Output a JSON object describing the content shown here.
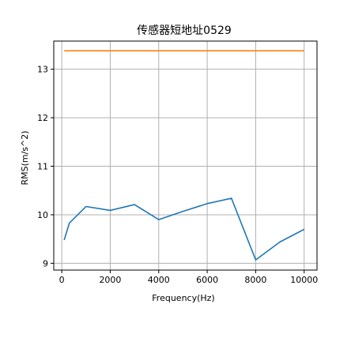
{
  "chart_data": {
    "type": "line",
    "title": "传感器短地址0529",
    "xlabel": "Frequency(Hz)",
    "ylabel": "RMS(m/s^2)",
    "xlim": [
      -330,
      10530
    ],
    "ylim": [
      8.86,
      13.58
    ],
    "xticks": [
      0,
      2000,
      4000,
      6000,
      8000,
      10000
    ],
    "yticks": [
      9,
      10,
      11,
      12,
      13
    ],
    "grid": true,
    "series": [
      {
        "color": "#1f77b4",
        "x": [
          100,
          315,
          1000,
          2000,
          3000,
          4000,
          5000,
          6000,
          7000,
          8000,
          9000,
          10000
        ],
        "y": [
          9.48,
          9.83,
          10.17,
          10.09,
          10.21,
          9.9,
          10.07,
          10.23,
          10.34,
          9.07,
          9.44,
          9.7
        ]
      },
      {
        "color": "#ff7f0e",
        "x": [
          100,
          10000
        ],
        "y": [
          13.38,
          13.38
        ]
      }
    ]
  }
}
